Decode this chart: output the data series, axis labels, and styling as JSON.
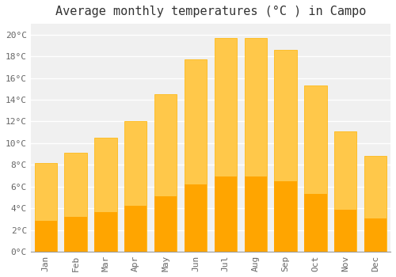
{
  "title": "Average monthly temperatures (°C ) in Campo",
  "months": [
    "Jan",
    "Feb",
    "Mar",
    "Apr",
    "May",
    "Jun",
    "Jul",
    "Aug",
    "Sep",
    "Oct",
    "Nov",
    "Dec"
  ],
  "values": [
    8.2,
    9.1,
    10.5,
    12.0,
    14.5,
    17.7,
    19.7,
    19.7,
    18.6,
    15.3,
    11.1,
    8.8
  ],
  "bar_color_top": "#FFC84A",
  "bar_color_bottom": "#FFA500",
  "bar_edge_color": "#FFB300",
  "ylim": [
    0,
    21
  ],
  "yticks": [
    0,
    2,
    4,
    6,
    8,
    10,
    12,
    14,
    16,
    18,
    20
  ],
  "background_color": "#ffffff",
  "plot_bg_color": "#f0f0f0",
  "grid_color": "#ffffff",
  "title_fontsize": 11,
  "tick_fontsize": 8,
  "font_family": "monospace"
}
